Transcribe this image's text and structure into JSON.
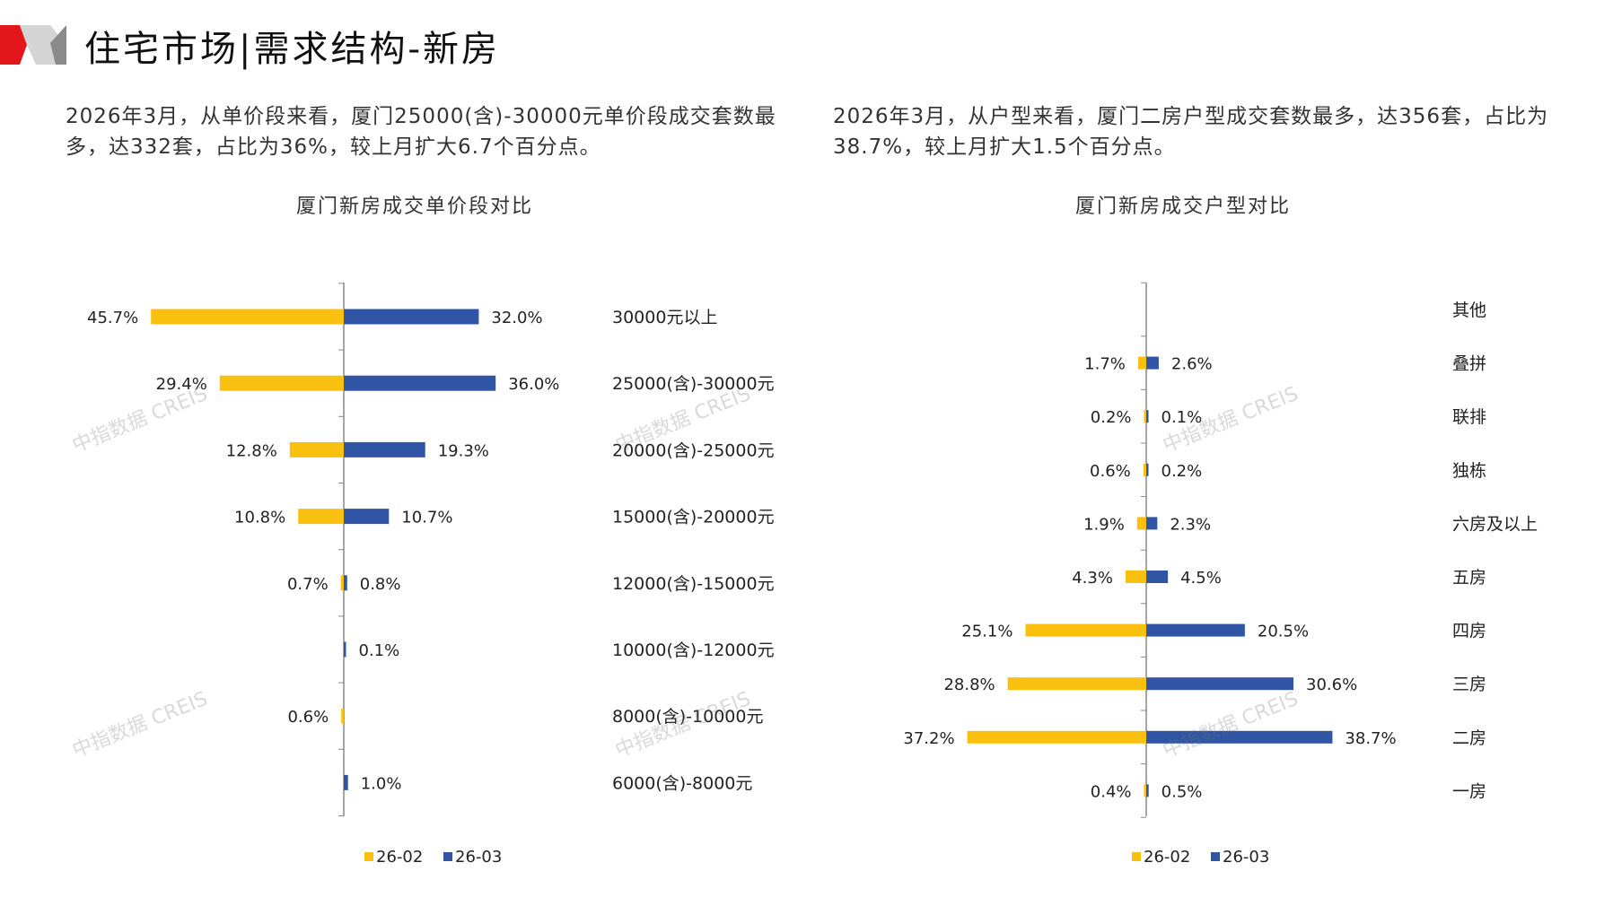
{
  "header": {
    "title": "住宅市场|需求结构-新房"
  },
  "watermark": "中指数据 CREIS",
  "colors": {
    "s1": "#F9C00F",
    "s2": "#2F55A4",
    "accent": "#E3161B"
  },
  "left_text": "2026年3月，从单价段来看，厦门25000(含)-30000元单价段成交套数最多，达332套，占比为36%，较上月扩大6.7个百分点。",
  "right_text": "2026年3月，从户型来看，厦门二房户型成交套数最多，达356套，占比为38.7%，较上月扩大1.5个百分点。",
  "chart_data": [
    {
      "type": "bar",
      "title": "厦门新房成交单价段对比",
      "categories": [
        "30000元以上",
        "25000(含)-30000元",
        "20000(含)-25000元",
        "15000(含)-20000元",
        "12000(含)-15000元",
        "10000(含)-12000元",
        "8000(含)-10000元",
        "6000(含)-8000元"
      ],
      "series": [
        {
          "name": "26-02",
          "values": [
            45.7,
            29.4,
            12.8,
            10.8,
            0.7,
            null,
            0.6,
            null
          ],
          "labels": [
            "45.7%",
            "29.4%",
            "12.8%",
            "10.8%",
            "0.7%",
            "",
            "0.6%",
            ""
          ]
        },
        {
          "name": "26-03",
          "values": [
            32.0,
            36.0,
            19.3,
            10.7,
            0.8,
            0.1,
            null,
            1.0
          ],
          "labels": [
            "32.0%",
            "36.0%",
            "19.3%",
            "10.7%",
            "0.8%",
            "0.1%",
            "",
            "1.0%"
          ]
        }
      ],
      "legend": "bottom"
    },
    {
      "type": "bar",
      "title": "厦门新房成交户型对比",
      "categories": [
        "其他",
        "叠拼",
        "联排",
        "独栋",
        "六房及以上",
        "五房",
        "四房",
        "三房",
        "二房",
        "一房"
      ],
      "series": [
        {
          "name": "26-02",
          "values": [
            null,
            1.7,
            0.2,
            0.6,
            1.9,
            4.3,
            25.1,
            28.8,
            37.2,
            0.4
          ],
          "labels": [
            "",
            "1.7%",
            "0.2%",
            "0.6%",
            "1.9%",
            "4.3%",
            "25.1%",
            "28.8%",
            "37.2%",
            "0.4%"
          ]
        },
        {
          "name": "26-03",
          "values": [
            null,
            2.6,
            0.1,
            0.2,
            2.3,
            4.5,
            20.5,
            30.6,
            38.7,
            0.5
          ],
          "labels": [
            "",
            "2.6%",
            "0.1%",
            "0.2%",
            "2.3%",
            "4.5%",
            "20.5%",
            "30.6%",
            "38.7%",
            "0.5%"
          ]
        }
      ],
      "legend": "bottom"
    }
  ]
}
